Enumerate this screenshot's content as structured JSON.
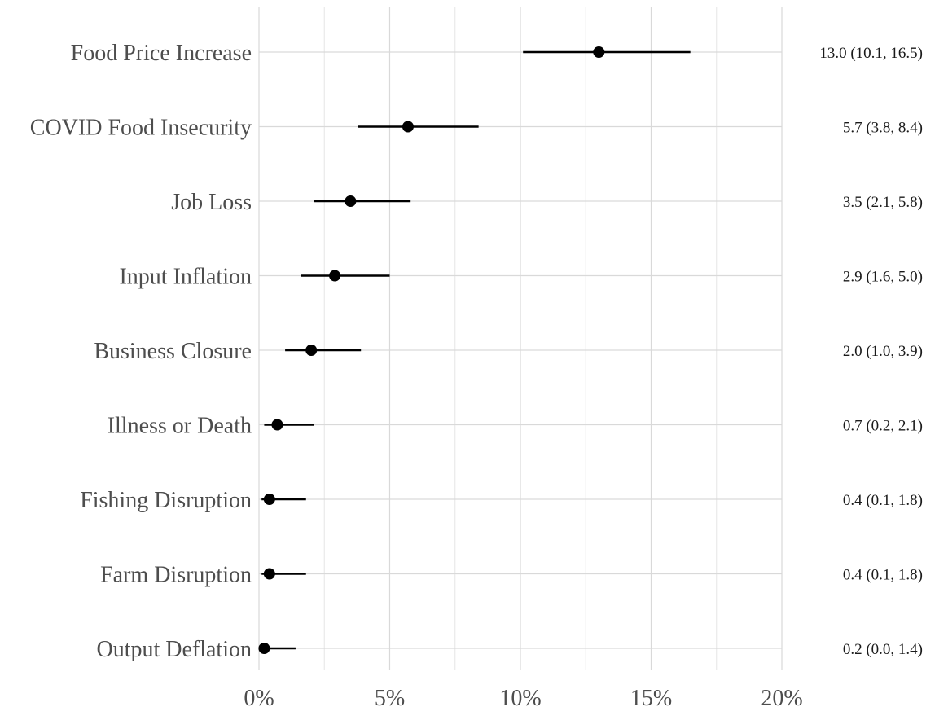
{
  "chart_data": {
    "type": "scatter",
    "subtype": "forest-plot",
    "title": "",
    "xlabel": "",
    "ylabel": "",
    "xlim": [
      0,
      20
    ],
    "x_tick_values": [
      0,
      5,
      10,
      15,
      20
    ],
    "x_tick_labels": [
      "0%",
      "5%",
      "10%",
      "15%",
      "20%"
    ],
    "minor_gridlines": [
      2.5,
      7.5,
      12.5,
      17.5
    ],
    "grid": true,
    "categories": [
      "Food Price Increase",
      "COVID Food Insecurity",
      "Job Loss",
      "Input Inflation",
      "Business Closure",
      "Illness or Death",
      "Fishing Disruption",
      "Farm Disruption",
      "Output Deflation"
    ],
    "estimates": [
      13.0,
      5.7,
      3.5,
      2.9,
      2.0,
      0.7,
      0.4,
      0.4,
      0.2
    ],
    "lower": [
      10.1,
      3.8,
      2.1,
      1.6,
      1.0,
      0.2,
      0.1,
      0.1,
      0.0
    ],
    "upper": [
      16.5,
      8.4,
      5.8,
      5.0,
      3.9,
      2.1,
      1.8,
      1.8,
      1.4
    ],
    "value_labels": [
      "13.0 (10.1, 16.5)",
      "5.7 (3.8, 8.4)",
      "3.5 (2.1, 5.8)",
      "2.9 (1.6, 5.0)",
      "2.0 (1.0, 3.9)",
      "0.7 (0.2, 2.1)",
      "0.4 (0.1, 1.8)",
      "0.4 (0.1, 1.8)",
      "0.2 (0.0, 1.4)"
    ]
  }
}
